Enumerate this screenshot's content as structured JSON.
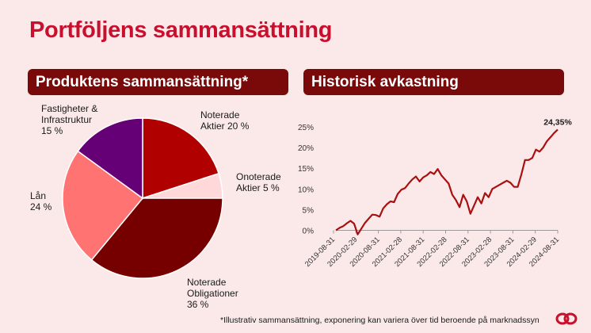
{
  "page": {
    "title": "Portföljens sammansättning",
    "footnote": "*Illustrativ sammansättning, exponering kan variera över tid beroende på marknadssyn"
  },
  "colors": {
    "brand_red": "#c8102e",
    "banner_bg": "#7a0a0a",
    "background": "#fbe9e9",
    "line": "#a81010"
  },
  "chart_data": [
    {
      "type": "pie",
      "title": "Produktens sammansättning*",
      "slices": [
        {
          "label": "Noterade Aktier",
          "label_lines": [
            "Noterade",
            "Aktier 20 %"
          ],
          "value": 20,
          "color": "#b00000"
        },
        {
          "label": "Onoterade Aktier",
          "label_lines": [
            "Onoterade",
            "Aktier 5 %"
          ],
          "value": 5,
          "color": "#ffd9d9"
        },
        {
          "label": "Noterade Obligationer",
          "label_lines": [
            "Noterade",
            "Obligationer",
            "36 %"
          ],
          "value": 36,
          "color": "#760000"
        },
        {
          "label": "Lån",
          "label_lines": [
            "Lån",
            "24 %"
          ],
          "value": 24,
          "color": "#ff7373"
        },
        {
          "label": "Fastigheter & Infrastruktur",
          "label_lines": [
            "Fastigheter &",
            "Infrastruktur",
            "15 %"
          ],
          "value": 15,
          "color": "#650077"
        }
      ]
    },
    {
      "type": "line",
      "title": "Historisk avkastning",
      "end_label": "24,35%",
      "y_ticks": [
        "0%",
        "5%",
        "10%",
        "15%",
        "20%",
        "25%"
      ],
      "ylim": [
        -2,
        26
      ],
      "x_ticks": [
        "2019-08-31",
        "2020-02-29",
        "2020-08-31",
        "2021-02-28",
        "2021-08-31",
        "2022-02-28",
        "2022-08-31",
        "2023-02-28",
        "2023-08-31",
        "2024-02-29",
        "2024-08-31"
      ],
      "series": [
        {
          "values": [
            0.0,
            0.6,
            1.0,
            1.7,
            2.3,
            1.6,
            -1.0,
            0.4,
            1.8,
            2.8,
            3.8,
            3.7,
            3.3,
            5.3,
            6.3,
            7.0,
            6.8,
            8.8,
            9.8,
            10.2,
            11.3,
            12.3,
            13.0,
            11.8,
            12.8,
            13.3,
            14.1,
            13.6,
            14.8,
            13.3,
            12.3,
            11.3,
            8.6,
            7.3,
            5.6,
            8.6,
            7.0,
            4.0,
            6.0,
            8.0,
            6.5,
            9.0,
            8.0,
            10.0,
            10.5,
            11.0,
            11.5,
            12.0,
            11.5,
            10.5,
            10.5,
            13.5,
            17.0,
            17.0,
            17.5,
            19.5,
            19.0,
            20.0,
            21.5,
            22.5,
            23.5,
            24.35
          ]
        }
      ]
    }
  ]
}
